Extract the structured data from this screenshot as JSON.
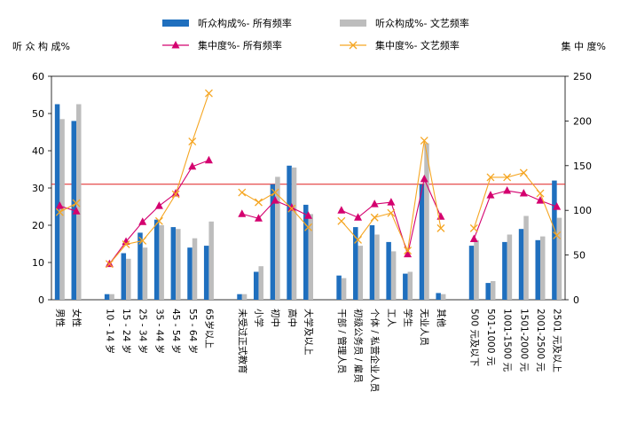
{
  "chart_data": {
    "type": "bar+line",
    "title_left": "听 众 构 成%",
    "title_right": "集 中 度%",
    "categories": [
      "男性",
      "女性",
      "",
      "10 - 14 岁",
      "15 - 24 岁",
      "25 - 34 岁",
      "35 - 44 岁",
      "45 - 54 岁",
      "55 - 64 岁",
      "65岁以上",
      "",
      "未受过正式教育",
      "小学",
      "初中",
      "高中",
      "大学及以上",
      "",
      "干部 / 管理人员",
      "初级公务员 / 雇员",
      "个体 / 私营企业人员",
      "工人",
      "学生",
      "无业人员",
      "其他",
      "",
      "500 元及以下",
      "501-1000 元",
      "1001-1500 元",
      "1501-2000 元",
      "2001-2500 元",
      "2501 元及以上"
    ],
    "series": [
      {
        "name": "听众构成%-   所有频率",
        "kind": "bar",
        "axis": "left",
        "color": "#1f6fbe",
        "values": [
          52.5,
          48,
          null,
          1.5,
          12.5,
          18,
          21.5,
          19.5,
          14,
          14.5,
          null,
          1.5,
          7.5,
          31,
          36,
          25.5,
          null,
          6.5,
          19.5,
          20,
          15.5,
          7,
          31,
          1.8,
          null,
          14.5,
          4.5,
          15.5,
          19,
          16,
          32
        ]
      },
      {
        "name": "听众构成%-   文艺频率",
        "kind": "bar",
        "axis": "left",
        "color": "#bdbdbd",
        "values": [
          48.5,
          52.5,
          null,
          1.5,
          11,
          14,
          20,
          19,
          16.5,
          21,
          null,
          1.5,
          9,
          33,
          35.5,
          23,
          null,
          5.8,
          14.5,
          17.5,
          13,
          7.5,
          42,
          1.5,
          null,
          16,
          5,
          17.5,
          22.5,
          17,
          22
        ]
      },
      {
        "name": "集中度%-   所有频率",
        "kind": "line",
        "axis": "right",
        "color": "#d4006f",
        "marker": "triangle",
        "values": [
          105,
          99,
          null,
          40,
          65,
          87,
          105,
          119,
          149,
          156,
          null,
          96,
          91,
          111,
          103,
          94,
          null,
          100,
          92,
          107,
          109,
          51,
          135,
          93,
          null,
          68,
          117,
          122,
          119,
          111,
          104
        ]
      },
      {
        "name": "集中度%-   文艺频率",
        "kind": "line",
        "axis": "right",
        "color": "#f5a623",
        "marker": "x",
        "values": [
          98,
          108,
          null,
          40,
          62,
          66,
          88,
          118,
          177,
          231,
          null,
          120,
          109,
          120,
          102,
          81,
          null,
          88,
          67,
          92,
          97,
          55,
          178,
          80,
          null,
          80,
          137,
          137,
          142,
          119,
          72
        ]
      }
    ],
    "left_axis": {
      "min": 0,
      "max": 60,
      "ticks": [
        "0",
        "10",
        "20",
        "30",
        "40",
        "50",
        "60"
      ]
    },
    "right_axis": {
      "min": 0,
      "max": 250,
      "ticks": [
        "0",
        "50",
        "100",
        "150",
        "200",
        "250"
      ]
    },
    "reference_line": {
      "axis": "left",
      "value": 31,
      "color": "#e02020"
    },
    "legend_position": "top"
  }
}
